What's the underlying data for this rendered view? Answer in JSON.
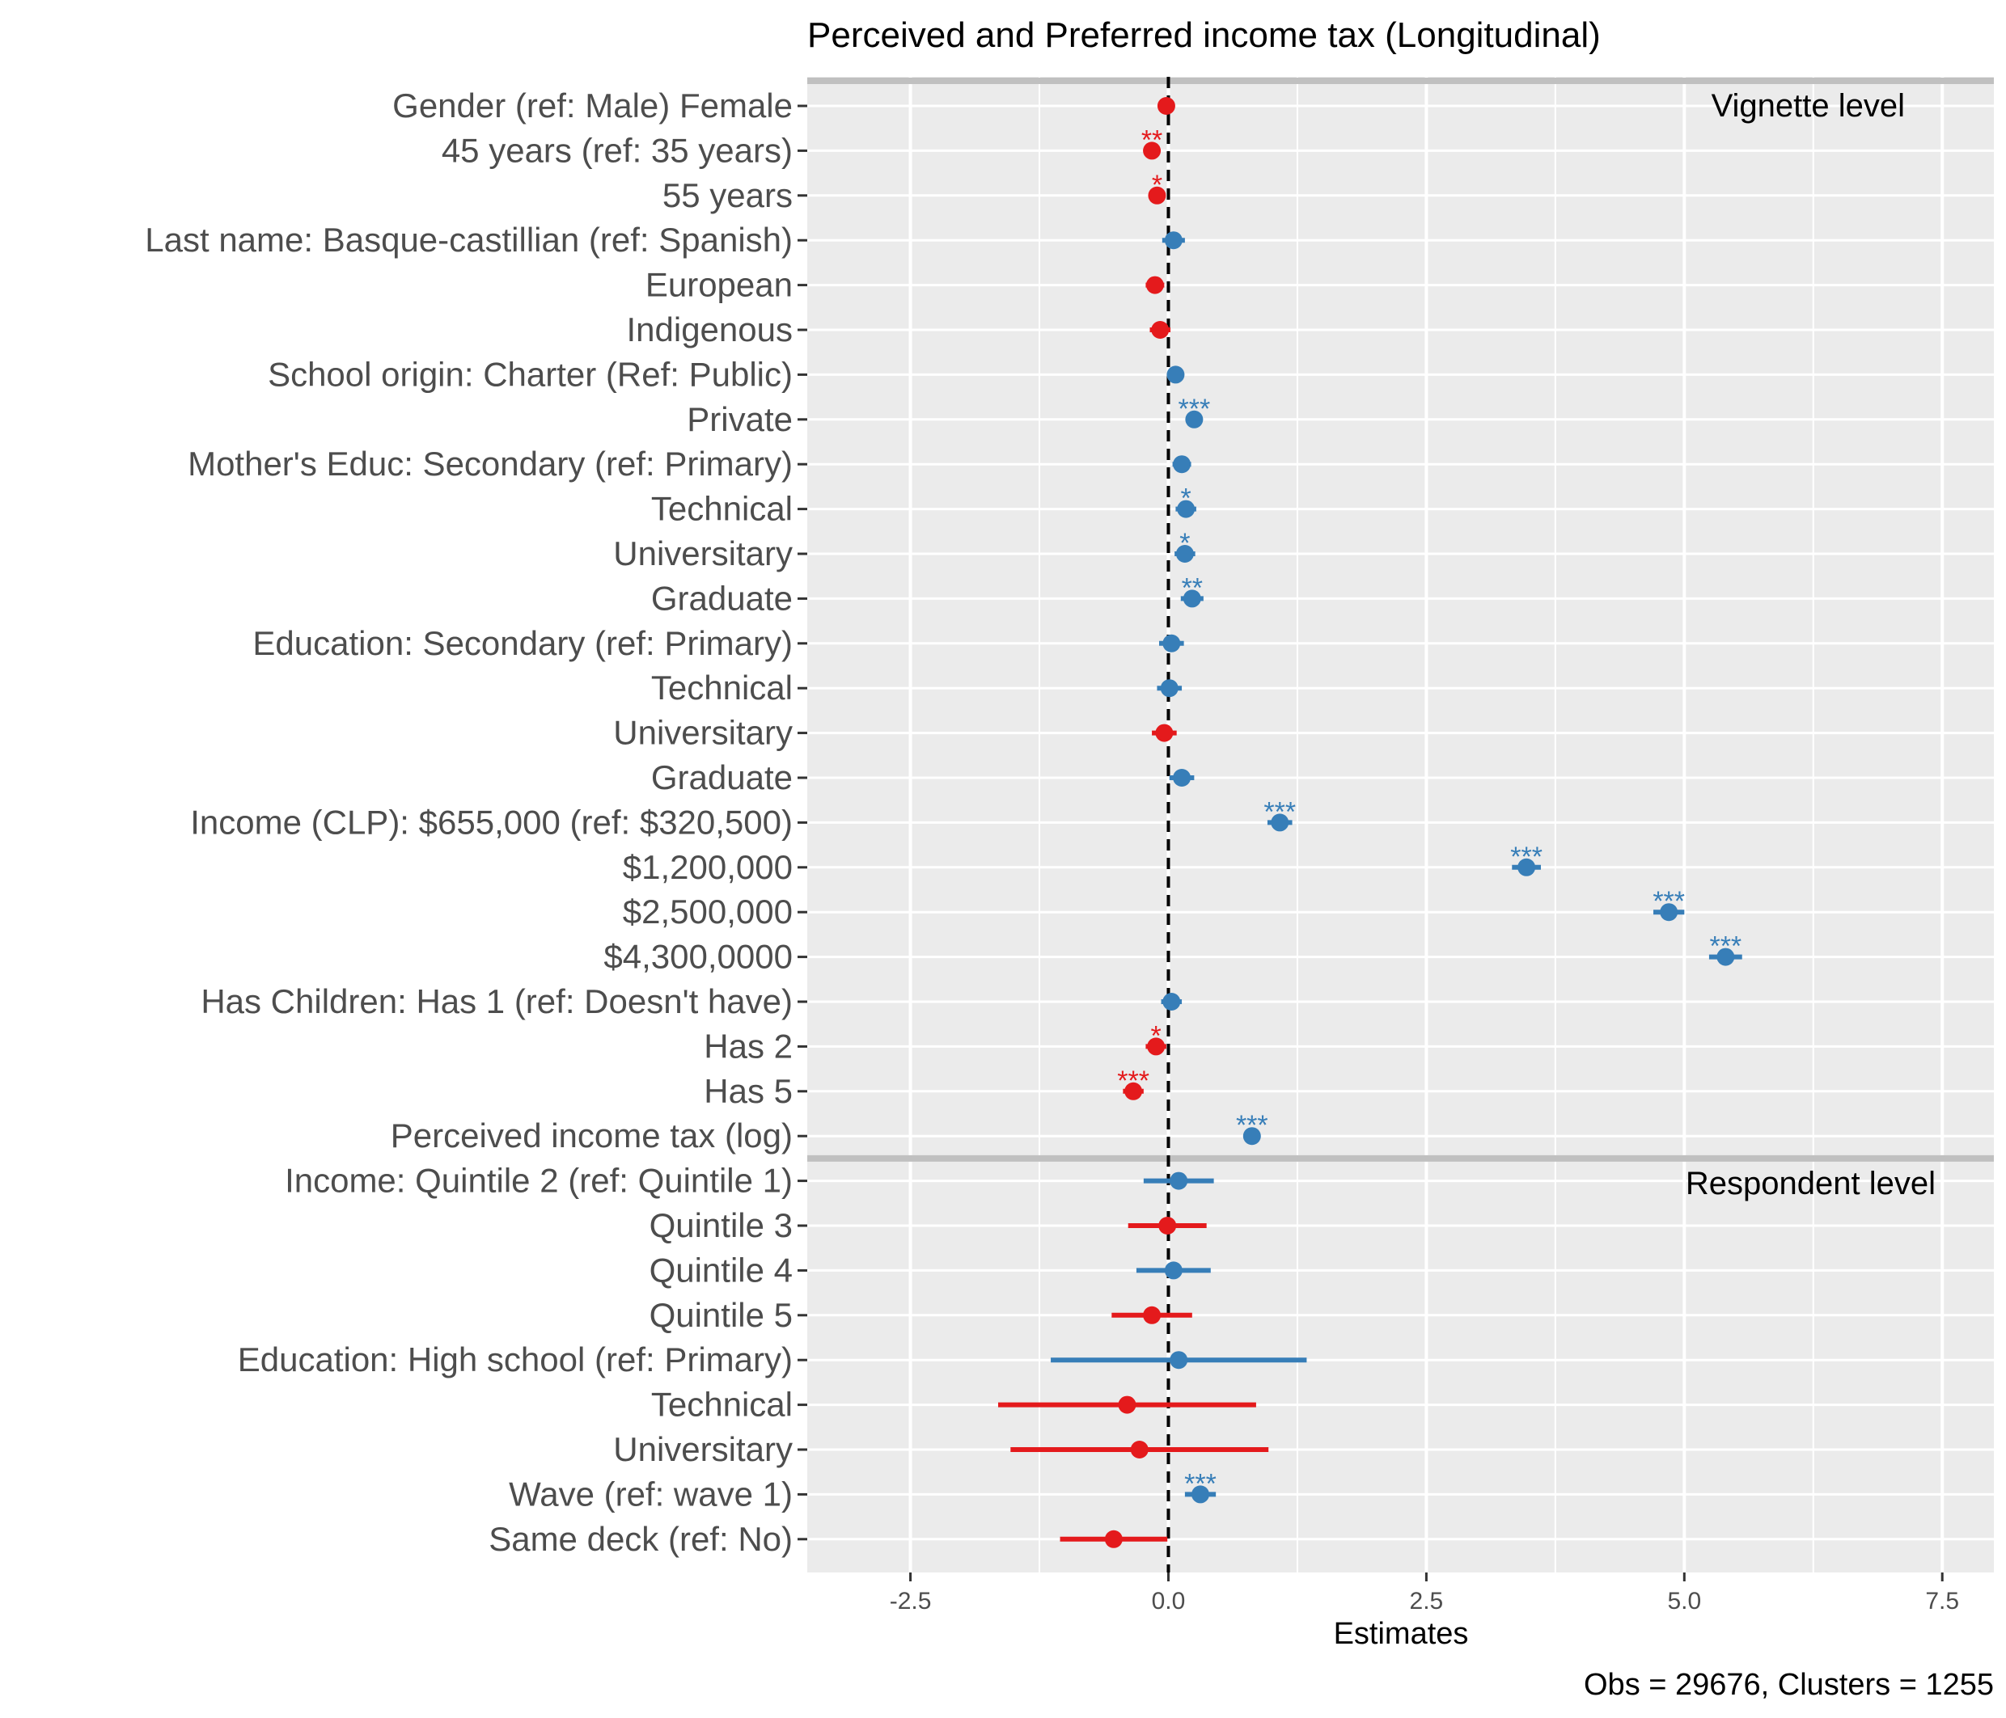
{
  "chart_data": {
    "type": "scatter",
    "subtype": "coefficient-plot",
    "title": "Perceived and Preferred income tax (Longitudinal)",
    "xlabel": "Estimates",
    "ylabel": "",
    "caption": "Obs = 29676, Clusters = 1255",
    "xlim": [
      -3.5,
      8.0
    ],
    "xticks": [
      "-2.5",
      "0.0",
      "2.5",
      "5.0",
      "7.5"
    ],
    "reference_line": 0,
    "grid": true,
    "colors": {
      "positive": "#377eb8",
      "negative": "#e41a1c"
    },
    "panels": [
      {
        "label": "Vignette level",
        "terms": [
          {
            "label": "Gender (ref: Male) Female",
            "estimate": -0.02,
            "low": -0.06,
            "high": 0.02,
            "stars": ""
          },
          {
            "label": "45 years (ref: 35 years)",
            "estimate": -0.16,
            "low": -0.23,
            "high": -0.09,
            "stars": "**"
          },
          {
            "label": "55 years",
            "estimate": -0.11,
            "low": -0.18,
            "high": -0.04,
            "stars": "*"
          },
          {
            "label": "Last name: Basque-castillian (ref: Spanish)",
            "estimate": 0.05,
            "low": -0.06,
            "high": 0.16,
            "stars": ""
          },
          {
            "label": "European",
            "estimate": -0.13,
            "low": -0.22,
            "high": -0.04,
            "stars": ""
          },
          {
            "label": "Indigenous",
            "estimate": -0.08,
            "low": -0.18,
            "high": 0.02,
            "stars": ""
          },
          {
            "label": "School origin: Charter (Ref: Public)",
            "estimate": 0.07,
            "low": 0.0,
            "high": 0.14,
            "stars": ""
          },
          {
            "label": "Private",
            "estimate": 0.25,
            "low": 0.17,
            "high": 0.33,
            "stars": "***"
          },
          {
            "label": "Mother's Educ: Secondary (ref: Primary)",
            "estimate": 0.13,
            "low": 0.04,
            "high": 0.22,
            "stars": ""
          },
          {
            "label": "Technical",
            "estimate": 0.17,
            "low": 0.07,
            "high": 0.27,
            "stars": "*"
          },
          {
            "label": "Universitary",
            "estimate": 0.16,
            "low": 0.06,
            "high": 0.26,
            "stars": "*"
          },
          {
            "label": "Graduate",
            "estimate": 0.23,
            "low": 0.12,
            "high": 0.34,
            "stars": "**"
          },
          {
            "label": "Education: Secondary (ref: Primary)",
            "estimate": 0.03,
            "low": -0.09,
            "high": 0.15,
            "stars": ""
          },
          {
            "label": "Technical",
            "estimate": 0.01,
            "low": -0.11,
            "high": 0.13,
            "stars": ""
          },
          {
            "label": "Universitary",
            "estimate": -0.04,
            "low": -0.16,
            "high": 0.08,
            "stars": ""
          },
          {
            "label": "Graduate",
            "estimate": 0.13,
            "low": 0.01,
            "high": 0.25,
            "stars": ""
          },
          {
            "label": "Income (CLP): $655,000 (ref: $320,500)",
            "estimate": 1.08,
            "low": 0.96,
            "high": 1.2,
            "stars": "***"
          },
          {
            "label": "$1,200,000",
            "estimate": 3.47,
            "low": 3.33,
            "high": 3.61,
            "stars": "***"
          },
          {
            "label": "$2,500,000",
            "estimate": 4.85,
            "low": 4.7,
            "high": 5.0,
            "stars": "***"
          },
          {
            "label": "$4,300,0000",
            "estimate": 5.4,
            "low": 5.24,
            "high": 5.56,
            "stars": "***"
          },
          {
            "label": "Has Children: Has 1 (ref: Doesn't have)",
            "estimate": 0.03,
            "low": -0.07,
            "high": 0.13,
            "stars": ""
          },
          {
            "label": "Has 2",
            "estimate": -0.12,
            "low": -0.22,
            "high": -0.02,
            "stars": "*"
          },
          {
            "label": "Has 5",
            "estimate": -0.34,
            "low": -0.44,
            "high": -0.24,
            "stars": "***"
          },
          {
            "label": "Perceived income tax (log)",
            "estimate": 0.81,
            "low": 0.76,
            "high": 0.86,
            "stars": "***"
          }
        ]
      },
      {
        "label": "Respondent level",
        "terms": [
          {
            "label": "Income: Quintile 2 (ref: Quintile 1)",
            "estimate": 0.1,
            "low": -0.24,
            "high": 0.44,
            "stars": ""
          },
          {
            "label": "Quintile 3",
            "estimate": -0.01,
            "low": -0.39,
            "high": 0.37,
            "stars": ""
          },
          {
            "label": "Quintile 4",
            "estimate": 0.05,
            "low": -0.31,
            "high": 0.41,
            "stars": ""
          },
          {
            "label": "Quintile 5",
            "estimate": -0.16,
            "low": -0.55,
            "high": 0.23,
            "stars": ""
          },
          {
            "label": "Education: High school (ref: Primary)",
            "estimate": 0.1,
            "low": -1.14,
            "high": 1.34,
            "stars": ""
          },
          {
            "label": "Technical",
            "estimate": -0.4,
            "low": -1.65,
            "high": 0.85,
            "stars": ""
          },
          {
            "label": "Universitary",
            "estimate": -0.28,
            "low": -1.53,
            "high": 0.97,
            "stars": ""
          },
          {
            "label": "Wave (ref: wave 1)",
            "estimate": 0.31,
            "low": 0.16,
            "high": 0.46,
            "stars": "***"
          },
          {
            "label": "Same deck (ref: No)",
            "estimate": -0.53,
            "low": -1.05,
            "high": -0.01,
            "stars": ""
          }
        ]
      }
    ]
  }
}
